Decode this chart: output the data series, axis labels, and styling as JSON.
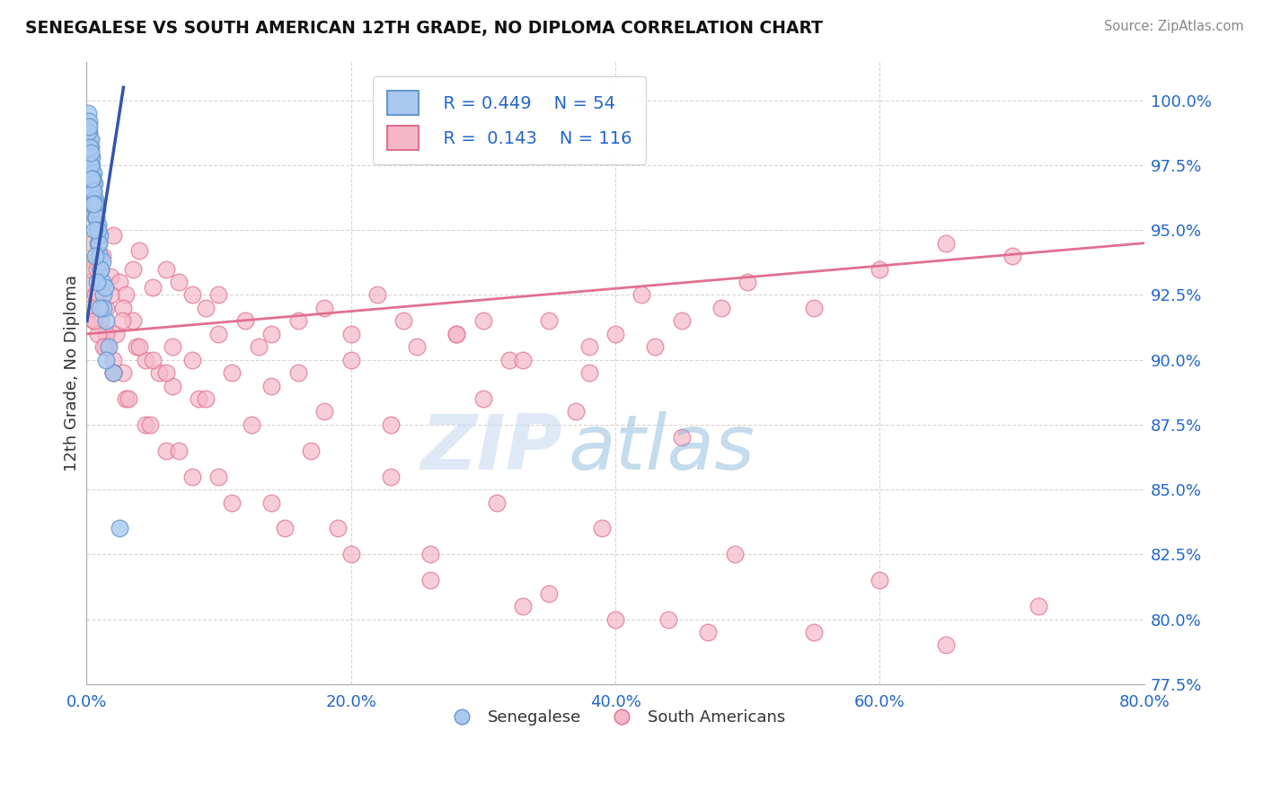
{
  "title": "SENEGALESE VS SOUTH AMERICAN 12TH GRADE, NO DIPLOMA CORRELATION CHART",
  "source": "Source: ZipAtlas.com",
  "xlim": [
    0.0,
    80.0
  ],
  "ylim": [
    77.5,
    101.5
  ],
  "blue_color": "#A8C8F0",
  "blue_edge": "#6699CC",
  "pink_color": "#F5B8C8",
  "pink_edge": "#E07090",
  "trend_blue": "#3355AA",
  "trend_pink": "#E07090",
  "legend_R_blue": "R = 0.449",
  "legend_N_blue": "N = 54",
  "legend_R_pink": "R =  0.143",
  "legend_N_pink": "N = 116",
  "ylabel": "12th Grade, No Diploma",
  "watermark_zip": "ZIP",
  "watermark_atlas": "atlas",
  "blue_scatter_x": [
    0.1,
    0.15,
    0.2,
    0.25,
    0.3,
    0.35,
    0.4,
    0.45,
    0.5,
    0.55,
    0.6,
    0.65,
    0.7,
    0.8,
    0.9,
    1.0,
    1.1,
    1.2,
    1.3,
    1.5,
    1.7,
    2.0,
    0.2,
    0.3,
    0.4,
    0.5,
    0.6,
    0.7,
    0.8,
    0.9,
    1.0,
    1.2,
    1.4,
    0.15,
    0.25,
    0.35,
    0.45,
    0.55,
    0.65,
    0.75,
    0.85,
    0.95,
    1.1,
    1.3,
    0.2,
    0.3,
    0.4,
    0.5,
    0.6,
    0.7,
    0.8,
    1.0,
    1.5,
    2.5
  ],
  "blue_scatter_y": [
    99.5,
    99.0,
    98.8,
    98.5,
    98.2,
    97.8,
    97.5,
    97.2,
    96.8,
    96.5,
    96.2,
    95.8,
    95.5,
    95.0,
    94.5,
    94.0,
    93.5,
    93.0,
    92.5,
    91.5,
    90.5,
    89.5,
    99.2,
    98.5,
    97.8,
    97.2,
    96.8,
    96.2,
    95.8,
    95.2,
    94.8,
    93.8,
    92.8,
    98.8,
    98.2,
    97.5,
    97.0,
    96.5,
    96.0,
    95.5,
    95.0,
    94.5,
    93.5,
    92.0,
    99.0,
    98.0,
    97.0,
    96.0,
    95.0,
    94.0,
    93.0,
    92.0,
    90.0,
    83.5
  ],
  "pink_scatter_x": [
    0.2,
    0.4,
    0.6,
    0.8,
    1.0,
    1.2,
    1.5,
    1.8,
    2.0,
    2.5,
    3.0,
    3.5,
    4.0,
    5.0,
    6.0,
    7.0,
    8.0,
    9.0,
    10.0,
    12.0,
    14.0,
    16.0,
    18.0,
    20.0,
    22.0,
    25.0,
    28.0,
    30.0,
    32.0,
    35.0,
    38.0,
    40.0,
    42.0,
    45.0,
    48.0,
    50.0,
    55.0,
    60.0,
    65.0,
    70.0,
    0.3,
    0.7,
    1.1,
    1.6,
    2.2,
    2.8,
    3.5,
    4.5,
    5.5,
    6.5,
    8.0,
    10.0,
    13.0,
    16.0,
    20.0,
    24.0,
    28.0,
    33.0,
    38.0,
    43.0,
    0.5,
    1.0,
    1.5,
    2.0,
    2.8,
    3.8,
    5.0,
    6.5,
    8.5,
    11.0,
    14.0,
    18.0,
    23.0,
    30.0,
    37.0,
    45.0,
    0.4,
    0.9,
    1.4,
    2.0,
    3.0,
    4.5,
    6.0,
    8.0,
    11.0,
    15.0,
    20.0,
    26.0,
    33.0,
    40.0,
    47.0,
    0.6,
    1.3,
    2.0,
    3.2,
    4.8,
    7.0,
    10.0,
    14.0,
    19.0,
    26.0,
    35.0,
    44.0,
    55.0,
    65.0,
    0.8,
    1.8,
    2.7,
    4.0,
    6.0,
    9.0,
    12.5,
    17.0,
    23.0,
    31.0,
    39.0,
    49.0,
    60.0,
    72.0
  ],
  "pink_scatter_y": [
    93.0,
    94.5,
    93.8,
    92.5,
    93.5,
    94.0,
    92.0,
    93.2,
    94.8,
    93.0,
    92.5,
    93.5,
    94.2,
    92.8,
    93.5,
    93.0,
    92.5,
    92.0,
    92.5,
    91.5,
    91.0,
    91.5,
    92.0,
    91.0,
    92.5,
    90.5,
    91.0,
    91.5,
    90.0,
    91.5,
    90.5,
    91.0,
    92.5,
    91.5,
    92.0,
    93.0,
    92.0,
    93.5,
    94.5,
    94.0,
    93.5,
    92.5,
    91.5,
    90.5,
    91.0,
    92.0,
    91.5,
    90.0,
    89.5,
    90.5,
    90.0,
    91.0,
    90.5,
    89.5,
    90.0,
    91.5,
    91.0,
    90.0,
    89.5,
    90.5,
    91.5,
    92.0,
    91.0,
    90.0,
    89.5,
    90.5,
    90.0,
    89.0,
    88.5,
    89.5,
    89.0,
    88.0,
    87.5,
    88.5,
    88.0,
    87.0,
    92.0,
    91.0,
    90.5,
    89.5,
    88.5,
    87.5,
    86.5,
    85.5,
    84.5,
    83.5,
    82.5,
    81.5,
    80.5,
    80.0,
    79.5,
    91.5,
    90.5,
    89.5,
    88.5,
    87.5,
    86.5,
    85.5,
    84.5,
    83.5,
    82.5,
    81.0,
    80.0,
    79.5,
    79.0,
    93.5,
    92.5,
    91.5,
    90.5,
    89.5,
    88.5,
    87.5,
    86.5,
    85.5,
    84.5,
    83.5,
    82.5,
    81.5,
    80.5
  ],
  "blue_trend_x0": 0.05,
  "blue_trend_x1": 2.8,
  "blue_trend_y0": 91.5,
  "blue_trend_y1": 100.5,
  "pink_trend_x0": 0.05,
  "pink_trend_x1": 80.0,
  "pink_trend_y0": 91.0,
  "pink_trend_y1": 94.5
}
